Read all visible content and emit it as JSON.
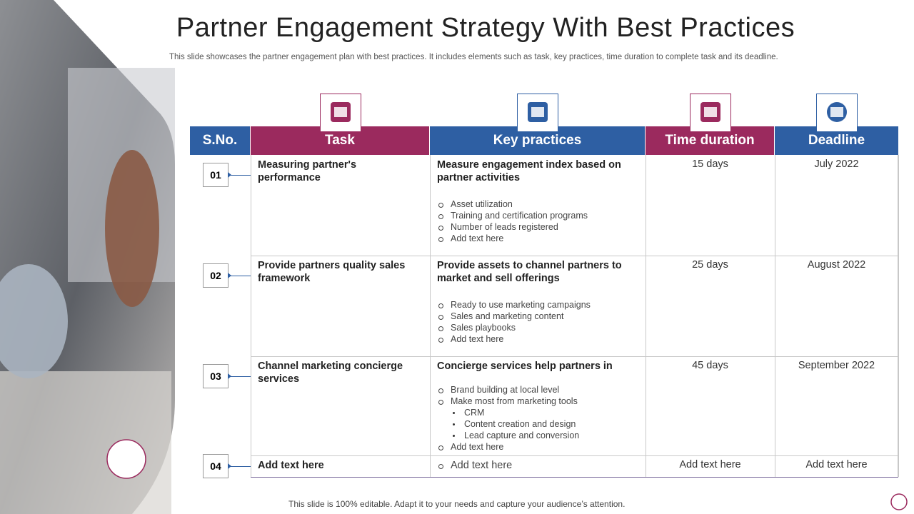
{
  "title": "Partner Engagement Strategy With Best Practices",
  "subtitle": "This slide showcases the partner engagement plan with best practices. It includes elements such as task, key practices, time duration to complete task and its deadline.",
  "footer": "This slide is 100% editable. Adapt it to your needs and capture your audience’s attention.",
  "table": {
    "headers": [
      "S.No.",
      "Task",
      "Key practices",
      "Time duration",
      "Deadline"
    ],
    "rows": [
      {
        "number": "01",
        "task": "Measuring partner's performance",
        "heading": "Measure engagement index based on partner activities",
        "practices": [
          {
            "text": "Asset utilization"
          },
          {
            "text": "Training  and certification programs"
          },
          {
            "text": "Number  of leads registered"
          },
          {
            "text": "Add text here"
          }
        ],
        "duration": "15 days",
        "deadline": "July 2022"
      },
      {
        "number": "02",
        "task": "Provide partners quality sales framework",
        "heading": "Provide assets to channel partners to market and sell offerings",
        "practices": [
          {
            "text": "Ready to use marketing campaigns"
          },
          {
            "text": "Sales and marketing content"
          },
          {
            "text": "Sales playbooks"
          },
          {
            "text": "Add text here"
          }
        ],
        "duration": "25 days",
        "deadline": "August 2022"
      },
      {
        "number": "03",
        "task": "Channel marketing concierge services",
        "heading": "Concierge services help partners in",
        "practices": [
          {
            "text": "Brand building at local level"
          },
          {
            "text": "Make most from marketing tools",
            "items": [
              "CRM",
              "Content creation and design",
              "Lead capture and conversion"
            ]
          },
          {
            "text": "Add text here"
          }
        ],
        "duration": "45 days",
        "deadline": "September 2022"
      },
      {
        "number": "04",
        "task": "Add  text here",
        "practices": [
          {
            "text": "Add text here"
          }
        ],
        "duration": "Add text here",
        "deadline": "Add text here"
      }
    ]
  }
}
